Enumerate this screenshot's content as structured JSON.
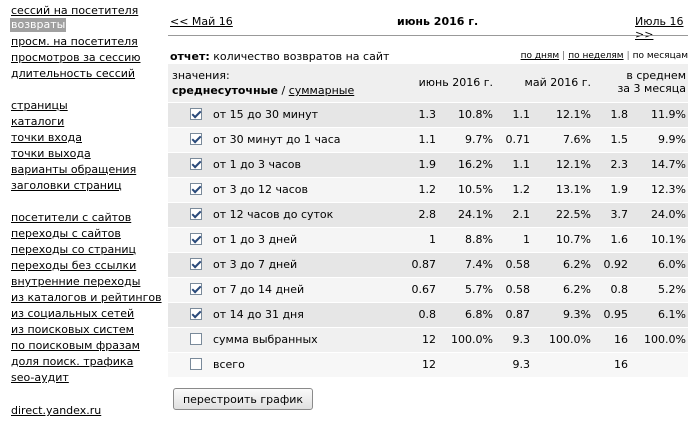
{
  "sidebar": {
    "items": [
      {
        "label": "сессий на посетителя",
        "active": false
      },
      {
        "label": "возвраты",
        "active": true
      },
      {
        "label": "просм. на посетителя",
        "active": false
      },
      {
        "label": "просмотров за сессию",
        "active": false
      },
      {
        "label": "длительность сессий",
        "active": false
      },
      {
        "label": "страницы",
        "active": false
      },
      {
        "label": "каталоги",
        "active": false
      },
      {
        "label": "точки входа",
        "active": false
      },
      {
        "label": "точки выхода",
        "active": false
      },
      {
        "label": "варианты обращения",
        "active": false
      },
      {
        "label": "заголовки страниц",
        "active": false
      },
      {
        "label": "посетители с сайтов",
        "active": false
      },
      {
        "label": "переходы с сайтов",
        "active": false
      },
      {
        "label": "переходы со страниц",
        "active": false
      },
      {
        "label": "переходы без ссылки",
        "active": false
      },
      {
        "label": "внутренние переходы",
        "active": false
      },
      {
        "label": "из каталогов и рейтингов",
        "active": false
      },
      {
        "label": "из социальных сетей",
        "active": false
      },
      {
        "label": "из поисковых систем",
        "active": false
      },
      {
        "label": "по поисковым фразам",
        "active": false
      },
      {
        "label": "доля поиск. трафика",
        "active": false
      },
      {
        "label": "seo-аудит",
        "active": false
      },
      {
        "label": "direct.yandex.ru",
        "active": false
      }
    ]
  },
  "nav": {
    "prev": "<< Май 16",
    "title": "июнь 2016 г.",
    "next": "Июль 16 >>"
  },
  "report": {
    "prefix": "отчет:",
    "text": "количество возвратов на сайт",
    "period_days": "по дням",
    "period_weeks": "по неделям",
    "period_months": "по месяцам"
  },
  "table": {
    "values_label": "значения:",
    "mode_daily": "среднесуточные",
    "mode_sep": "/",
    "mode_total": "суммарные",
    "col_june": "июнь 2016 г.",
    "col_may": "май 2016 г.",
    "col_avg_line1": "в среднем",
    "col_avg_line2": "за 3 месяца",
    "rows": [
      {
        "label": "от 15 до 30 минут",
        "checked": true,
        "v1": "1.3",
        "p1": "10.8%",
        "v2": "1.1",
        "p2": "12.1%",
        "v3": "1.8",
        "p3": "11.9%"
      },
      {
        "label": "от 30 минут до 1 часа",
        "checked": true,
        "v1": "1.1",
        "p1": "9.7%",
        "v2": "0.71",
        "p2": "7.6%",
        "v3": "1.5",
        "p3": "9.9%"
      },
      {
        "label": "от 1 до 3 часов",
        "checked": true,
        "v1": "1.9",
        "p1": "16.2%",
        "v2": "1.1",
        "p2": "12.1%",
        "v3": "2.3",
        "p3": "14.7%"
      },
      {
        "label": "от 3 до 12 часов",
        "checked": true,
        "v1": "1.2",
        "p1": "10.5%",
        "v2": "1.2",
        "p2": "13.1%",
        "v3": "1.9",
        "p3": "12.3%"
      },
      {
        "label": "от 12 часов до суток",
        "checked": true,
        "v1": "2.8",
        "p1": "24.1%",
        "v2": "2.1",
        "p2": "22.5%",
        "v3": "3.7",
        "p3": "24.0%"
      },
      {
        "label": "от 1 до 3 дней",
        "checked": true,
        "v1": "1",
        "p1": "8.8%",
        "v2": "1",
        "p2": "10.7%",
        "v3": "1.6",
        "p3": "10.1%"
      },
      {
        "label": "от 3 до 7 дней",
        "checked": true,
        "v1": "0.87",
        "p1": "7.4%",
        "v2": "0.58",
        "p2": "6.2%",
        "v3": "0.92",
        "p3": "6.0%"
      },
      {
        "label": "от 7 до 14 дней",
        "checked": true,
        "v1": "0.67",
        "p1": "5.7%",
        "v2": "0.58",
        "p2": "6.2%",
        "v3": "0.8",
        "p3": "5.2%"
      },
      {
        "label": "от 14 до 31 дня",
        "checked": true,
        "v1": "0.8",
        "p1": "6.8%",
        "v2": "0.87",
        "p2": "9.3%",
        "v3": "0.95",
        "p3": "6.1%"
      }
    ],
    "sum_row": {
      "label": "сумма выбранных",
      "checked": false,
      "v1": "12",
      "p1": "100.0%",
      "v2": "9.3",
      "p2": "100.0%",
      "v3": "16",
      "p3": "100.0%"
    },
    "total_row": {
      "label": "всего",
      "checked": false,
      "v1": "12",
      "p1": "",
      "v2": "9.3",
      "p2": "",
      "v3": "16",
      "p3": ""
    }
  },
  "rebuild_button": "перестроить график"
}
